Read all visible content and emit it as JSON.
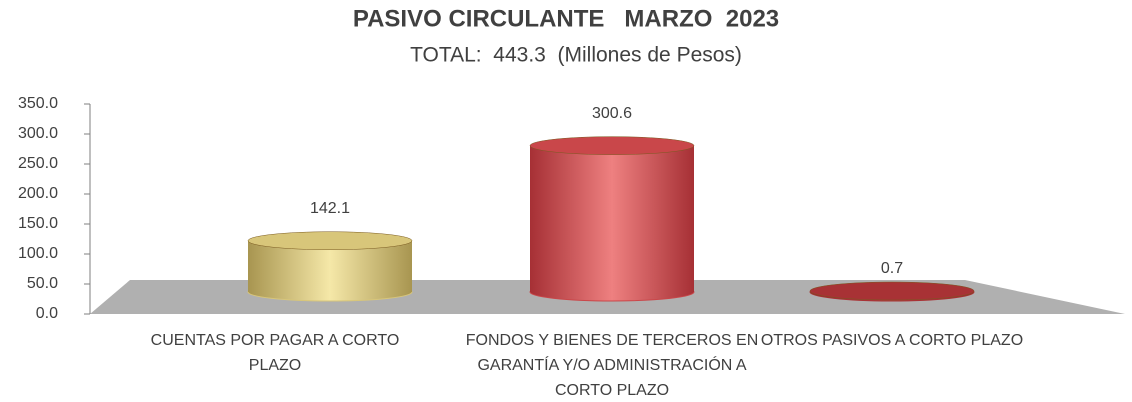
{
  "chart_data": {
    "type": "cylinder-bar",
    "title": "PASIVO CIRCULANTE   MARZO  2023",
    "subtitle": "TOTAL:  443.3  (Millones de Pesos)",
    "categories": [
      "CUENTAS POR PAGAR A CORTO PLAZO",
      "FONDOS Y BIENES DE TERCEROS EN GARANTÍA Y/O ADMINISTRACIÓN A CORTO PLAZO",
      "OTROS PASIVOS A CORTO PLAZO"
    ],
    "values": [
      142.1,
      300.6,
      0.7
    ],
    "colors": [
      "#d8c67a",
      "#c9474a",
      "#a83235"
    ],
    "ylim": [
      0,
      350
    ],
    "yticks": [
      {
        "value": 0,
        "label": "0.0"
      },
      {
        "value": 50,
        "label": "50.0"
      },
      {
        "value": 100,
        "label": "100.0"
      },
      {
        "value": 150,
        "label": "150.0"
      },
      {
        "value": 200,
        "label": "200.0"
      },
      {
        "value": 250,
        "label": "250.0"
      },
      {
        "value": 300,
        "label": "300.0"
      },
      {
        "value": 350,
        "label": "350.0"
      }
    ]
  }
}
